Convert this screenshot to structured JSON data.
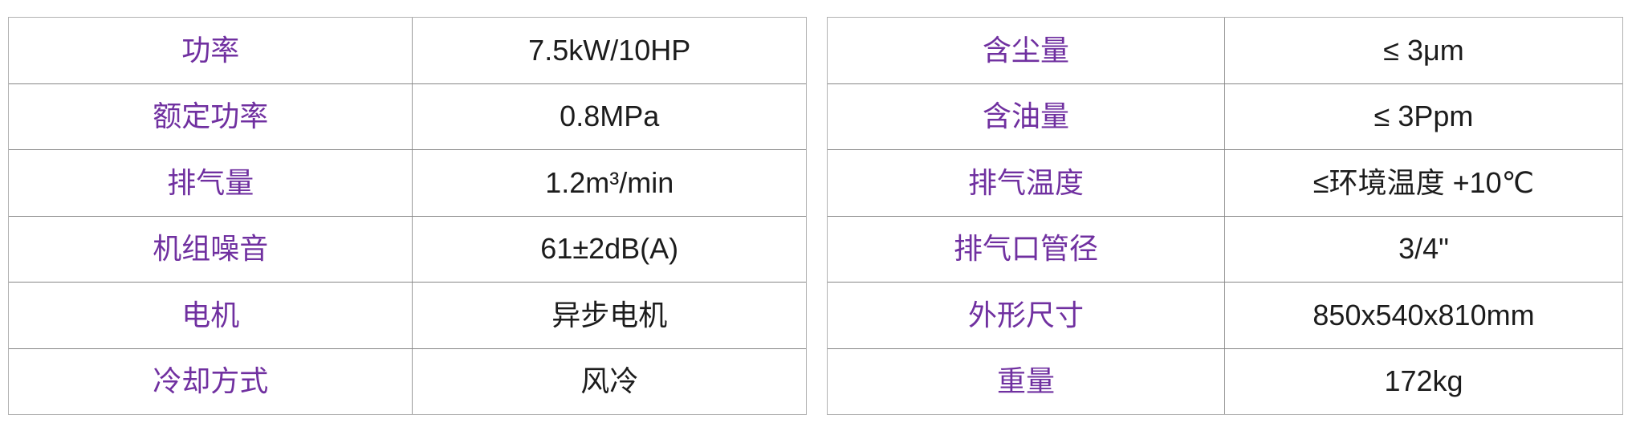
{
  "theme": {
    "label_color": "#7030A0",
    "value_color": "#1c1c1c",
    "border_color": "#8f8f8f",
    "background": "#ffffff"
  },
  "left_table": {
    "rows": [
      {
        "label": "功率",
        "value": "7.5kW/10HP"
      },
      {
        "label": "额定功率",
        "value": "0.8MPa"
      },
      {
        "label": "排气量",
        "value": "1.2m³/min"
      },
      {
        "label": "机组噪音",
        "value": "61±2dB(A)"
      },
      {
        "label": "电机",
        "value": "异步电机"
      },
      {
        "label": "冷却方式",
        "value": "风冷"
      }
    ]
  },
  "right_table": {
    "rows": [
      {
        "label": "含尘量",
        "value": "≤ 3μm"
      },
      {
        "label": "含油量",
        "value": "≤ 3Ppm"
      },
      {
        "label": "排气温度",
        "value": "≤环境温度 +10℃"
      },
      {
        "label": "排气口管径",
        "value": "3/4\""
      },
      {
        "label": "外形尺寸",
        "value": "850x540x810mm"
      },
      {
        "label": "重量",
        "value": "172kg"
      }
    ]
  }
}
